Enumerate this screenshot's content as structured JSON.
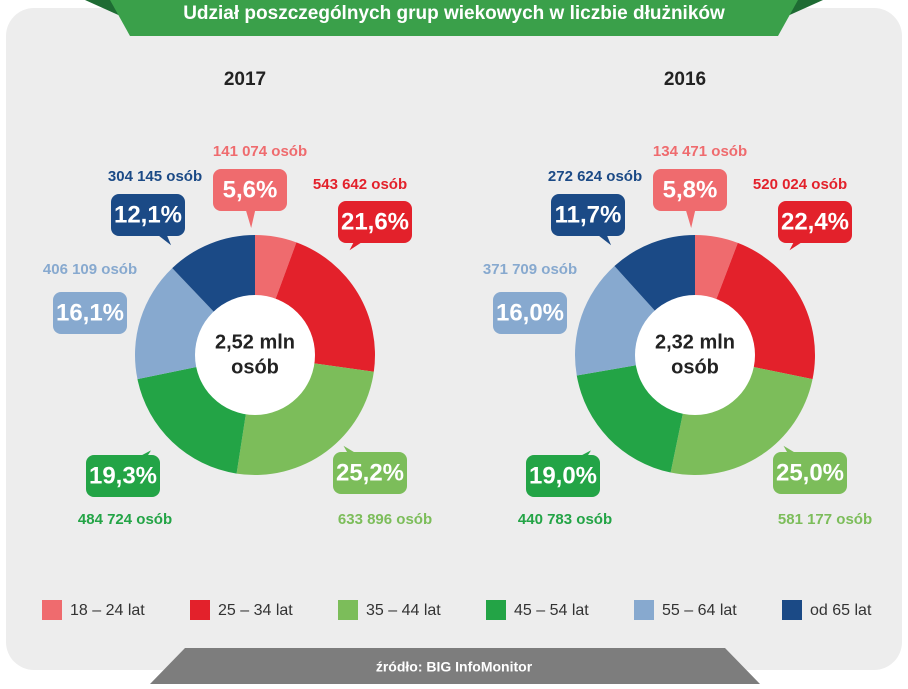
{
  "title": "Udział poszczególnych grup wiekowych w liczbie dłużników",
  "source": "źródło: BIG InfoMonitor",
  "chart_data": [
    {
      "type": "donut",
      "title": "2017",
      "center_label": [
        "2,52 mln",
        "osób"
      ],
      "categories": [
        "18 – 24 lat",
        "25 – 34 lat",
        "35 – 44 lat",
        "45 – 54 lat",
        "55 – 64 lat",
        "od 65 lat"
      ],
      "colors": [
        "#ef6b6e",
        "#e3212b",
        "#7cbd5a",
        "#23a446",
        "#87a9cf",
        "#1b4a86"
      ],
      "values": [
        5.6,
        21.6,
        25.2,
        19.3,
        16.1,
        12.1
      ],
      "value_labels": [
        "5,6%",
        "21,6%",
        "25,2%",
        "19,3%",
        "16,1%",
        "12,1%"
      ],
      "count_labels": [
        "141 074 osób",
        "543 642 osób",
        "633 896 osób",
        "484 724 osób",
        "406 109 osób",
        "304 145 osób"
      ]
    },
    {
      "type": "donut",
      "title": "2016",
      "center_label": [
        "2,32 mln",
        "osób"
      ],
      "categories": [
        "18 – 24 lat",
        "25 – 34 lat",
        "35 – 44 lat",
        "45 – 54 lat",
        "55 – 64 lat",
        "od 65 lat"
      ],
      "colors": [
        "#ef6b6e",
        "#e3212b",
        "#7cbd5a",
        "#23a446",
        "#87a9cf",
        "#1b4a86"
      ],
      "values": [
        5.8,
        22.4,
        25.0,
        19.0,
        16.0,
        11.7
      ],
      "value_labels": [
        "5,8%",
        "22,4%",
        "25,0%",
        "19,0%",
        "16,0%",
        "11,7%"
      ],
      "count_labels": [
        "134 471 osób",
        "520 024 osób",
        "581 177 osób",
        "440 783 osób",
        "371 709 osób",
        "272 624 osób"
      ]
    }
  ]
}
